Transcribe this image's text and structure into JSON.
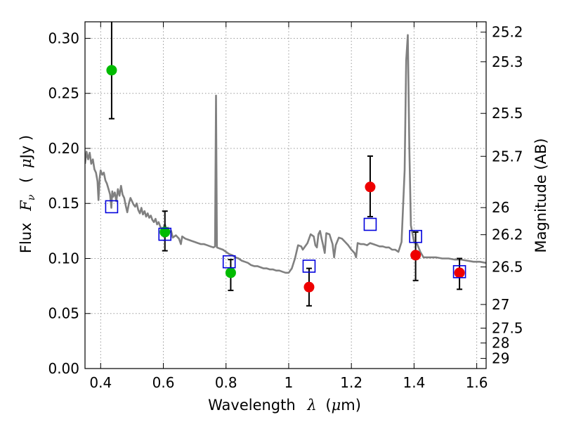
{
  "chart_data": {
    "type": "scatter",
    "xlabel_text": "Wavelength",
    "xlabel_symbol": "λ",
    "xlabel_unit_open": "(",
    "xlabel_unit_mu": "μ",
    "xlabel_unit_rest": "m)",
    "ylabel_text": "Flux",
    "ylabel_symbol": "F",
    "ylabel_sub": "ν",
    "ylabel_unit_open": "(",
    "ylabel_unit_mu": "μ",
    "ylabel_unit_rest": "Jy )",
    "y2label": "Magnitude (AB)",
    "xlim": [
      0.35,
      1.63
    ],
    "ylim": [
      0.0,
      0.315
    ],
    "grid": true,
    "x_ticks": [
      0.4,
      0.6,
      0.8,
      1.0,
      1.2,
      1.4,
      1.6
    ],
    "x_tick_labels": [
      "0.4",
      "0.6",
      "0.8",
      "1",
      "1.2",
      "1.4",
      "1.6"
    ],
    "y_ticks": [
      0.0,
      0.05,
      0.1,
      0.15,
      0.2,
      0.25,
      0.3
    ],
    "y_tick_labels": [
      "0.00",
      "0.05",
      "0.10",
      "0.15",
      "0.20",
      "0.25",
      "0.30"
    ],
    "y2_ticks": [
      {
        "label": "25.2",
        "flux": 0.3056
      },
      {
        "label": "25.3",
        "flux": 0.2787
      },
      {
        "label": "25.5",
        "flux": 0.2318
      },
      {
        "label": "25.7",
        "flux": 0.1928
      },
      {
        "label": "26",
        "flux": 0.1462
      },
      {
        "label": "26.2",
        "flux": 0.1216
      },
      {
        "label": "26.5",
        "flux": 0.0923
      },
      {
        "label": "27",
        "flux": 0.0582
      },
      {
        "label": "27.5",
        "flux": 0.0367
      },
      {
        "label": "28",
        "flux": 0.0232
      },
      {
        "label": "29",
        "flux": 0.0092
      }
    ],
    "colors": {
      "model": "#808080",
      "green": "#00bb00",
      "red": "#ee0000",
      "square": "#0000dd",
      "errorbar": "#000000",
      "grid": "#9a9a9a"
    },
    "series": [
      {
        "marker": "circle",
        "color": "green",
        "points": [
          {
            "x": 0.435,
            "y": 0.271,
            "ylo": 0.227,
            "yhi": 0.315
          },
          {
            "x": 0.605,
            "y": 0.124,
            "ylo": 0.107,
            "yhi": 0.143
          },
          {
            "x": 0.815,
            "y": 0.087,
            "ylo": 0.071,
            "yhi": 0.099
          }
        ]
      },
      {
        "marker": "circle",
        "color": "red",
        "points": [
          {
            "x": 1.065,
            "y": 0.074,
            "ylo": 0.057,
            "yhi": 0.091
          },
          {
            "x": 1.26,
            "y": 0.165,
            "ylo": 0.138,
            "yhi": 0.193
          },
          {
            "x": 1.405,
            "y": 0.103,
            "ylo": 0.08,
            "yhi": 0.124
          },
          {
            "x": 1.545,
            "y": 0.087,
            "ylo": 0.072,
            "yhi": 0.1
          }
        ]
      },
      {
        "marker": "square",
        "color": "square",
        "points": [
          {
            "x": 0.435,
            "y": 0.147
          },
          {
            "x": 0.605,
            "y": 0.122
          },
          {
            "x": 0.81,
            "y": 0.097
          },
          {
            "x": 1.065,
            "y": 0.093
          },
          {
            "x": 1.26,
            "y": 0.131
          },
          {
            "x": 1.405,
            "y": 0.12
          },
          {
            "x": 1.545,
            "y": 0.088
          }
        ]
      }
    ],
    "model_spectrum": [
      [
        0.35,
        0.186
      ],
      [
        0.355,
        0.197
      ],
      [
        0.36,
        0.19
      ],
      [
        0.365,
        0.196
      ],
      [
        0.37,
        0.186
      ],
      [
        0.375,
        0.19
      ],
      [
        0.38,
        0.181
      ],
      [
        0.385,
        0.178
      ],
      [
        0.39,
        0.17
      ],
      [
        0.393,
        0.153
      ],
      [
        0.397,
        0.174
      ],
      [
        0.4,
        0.18
      ],
      [
        0.405,
        0.176
      ],
      [
        0.41,
        0.178
      ],
      [
        0.415,
        0.171
      ],
      [
        0.42,
        0.168
      ],
      [
        0.425,
        0.163
      ],
      [
        0.43,
        0.158
      ],
      [
        0.434,
        0.146
      ],
      [
        0.437,
        0.161
      ],
      [
        0.44,
        0.156
      ],
      [
        0.445,
        0.16
      ],
      [
        0.45,
        0.152
      ],
      [
        0.455,
        0.163
      ],
      [
        0.46,
        0.157
      ],
      [
        0.465,
        0.166
      ],
      [
        0.47,
        0.158
      ],
      [
        0.475,
        0.155
      ],
      [
        0.48,
        0.148
      ],
      [
        0.485,
        0.142
      ],
      [
        0.49,
        0.15
      ],
      [
        0.495,
        0.155
      ],
      [
        0.5,
        0.152
      ],
      [
        0.505,
        0.149
      ],
      [
        0.51,
        0.147
      ],
      [
        0.515,
        0.15
      ],
      [
        0.52,
        0.144
      ],
      [
        0.525,
        0.141
      ],
      [
        0.53,
        0.146
      ],
      [
        0.535,
        0.14
      ],
      [
        0.54,
        0.143
      ],
      [
        0.545,
        0.138
      ],
      [
        0.55,
        0.141
      ],
      [
        0.555,
        0.137
      ],
      [
        0.56,
        0.139
      ],
      [
        0.565,
        0.135
      ],
      [
        0.57,
        0.133
      ],
      [
        0.575,
        0.136
      ],
      [
        0.58,
        0.131
      ],
      [
        0.585,
        0.133
      ],
      [
        0.59,
        0.129
      ],
      [
        0.595,
        0.127
      ],
      [
        0.6,
        0.128
      ],
      [
        0.605,
        0.131
      ],
      [
        0.61,
        0.126
      ],
      [
        0.615,
        0.128
      ],
      [
        0.62,
        0.124
      ],
      [
        0.625,
        0.125
      ],
      [
        0.63,
        0.119
      ],
      [
        0.64,
        0.121
      ],
      [
        0.65,
        0.118
      ],
      [
        0.656,
        0.113
      ],
      [
        0.66,
        0.12
      ],
      [
        0.67,
        0.118
      ],
      [
        0.68,
        0.117
      ],
      [
        0.69,
        0.116
      ],
      [
        0.7,
        0.115
      ],
      [
        0.71,
        0.114
      ],
      [
        0.72,
        0.113
      ],
      [
        0.73,
        0.113
      ],
      [
        0.74,
        0.112
      ],
      [
        0.75,
        0.111
      ],
      [
        0.76,
        0.11
      ],
      [
        0.765,
        0.111
      ],
      [
        0.768,
        0.248
      ],
      [
        0.771,
        0.11
      ],
      [
        0.78,
        0.109
      ],
      [
        0.79,
        0.108
      ],
      [
        0.8,
        0.106
      ],
      [
        0.81,
        0.104
      ],
      [
        0.82,
        0.103
      ],
      [
        0.83,
        0.101
      ],
      [
        0.84,
        0.1
      ],
      [
        0.85,
        0.098
      ],
      [
        0.86,
        0.097
      ],
      [
        0.87,
        0.096
      ],
      [
        0.88,
        0.094
      ],
      [
        0.89,
        0.093
      ],
      [
        0.9,
        0.093
      ],
      [
        0.91,
        0.092
      ],
      [
        0.92,
        0.091
      ],
      [
        0.93,
        0.091
      ],
      [
        0.94,
        0.09
      ],
      [
        0.95,
        0.09
      ],
      [
        0.96,
        0.089
      ],
      [
        0.97,
        0.089
      ],
      [
        0.98,
        0.088
      ],
      [
        0.99,
        0.087
      ],
      [
        1.0,
        0.087
      ],
      [
        1.01,
        0.091
      ],
      [
        1.02,
        0.1
      ],
      [
        1.03,
        0.112
      ],
      [
        1.04,
        0.111
      ],
      [
        1.045,
        0.108
      ],
      [
        1.05,
        0.11
      ],
      [
        1.06,
        0.114
      ],
      [
        1.07,
        0.122
      ],
      [
        1.08,
        0.12
      ],
      [
        1.085,
        0.112
      ],
      [
        1.09,
        0.11
      ],
      [
        1.095,
        0.122
      ],
      [
        1.1,
        0.125
      ],
      [
        1.105,
        0.118
      ],
      [
        1.11,
        0.112
      ],
      [
        1.115,
        0.105
      ],
      [
        1.12,
        0.123
      ],
      [
        1.13,
        0.122
      ],
      [
        1.14,
        0.113
      ],
      [
        1.145,
        0.101
      ],
      [
        1.15,
        0.112
      ],
      [
        1.16,
        0.119
      ],
      [
        1.17,
        0.118
      ],
      [
        1.18,
        0.115
      ],
      [
        1.19,
        0.112
      ],
      [
        1.2,
        0.108
      ],
      [
        1.21,
        0.105
      ],
      [
        1.215,
        0.101
      ],
      [
        1.22,
        0.114
      ],
      [
        1.23,
        0.113
      ],
      [
        1.24,
        0.113
      ],
      [
        1.25,
        0.112
      ],
      [
        1.26,
        0.114
      ],
      [
        1.27,
        0.113
      ],
      [
        1.28,
        0.112
      ],
      [
        1.29,
        0.111
      ],
      [
        1.3,
        0.111
      ],
      [
        1.31,
        0.11
      ],
      [
        1.32,
        0.11
      ],
      [
        1.33,
        0.108
      ],
      [
        1.34,
        0.108
      ],
      [
        1.35,
        0.106
      ],
      [
        1.36,
        0.115
      ],
      [
        1.37,
        0.18
      ],
      [
        1.375,
        0.28
      ],
      [
        1.38,
        0.303
      ],
      [
        1.385,
        0.2
      ],
      [
        1.39,
        0.13
      ],
      [
        1.4,
        0.115
      ],
      [
        1.41,
        0.113
      ],
      [
        1.42,
        0.106
      ],
      [
        1.43,
        0.101
      ],
      [
        1.45,
        0.101
      ],
      [
        1.47,
        0.101
      ],
      [
        1.49,
        0.1
      ],
      [
        1.51,
        0.1
      ],
      [
        1.53,
        0.099
      ],
      [
        1.55,
        0.099
      ],
      [
        1.57,
        0.098
      ],
      [
        1.59,
        0.097
      ],
      [
        1.61,
        0.097
      ],
      [
        1.63,
        0.096
      ]
    ]
  }
}
